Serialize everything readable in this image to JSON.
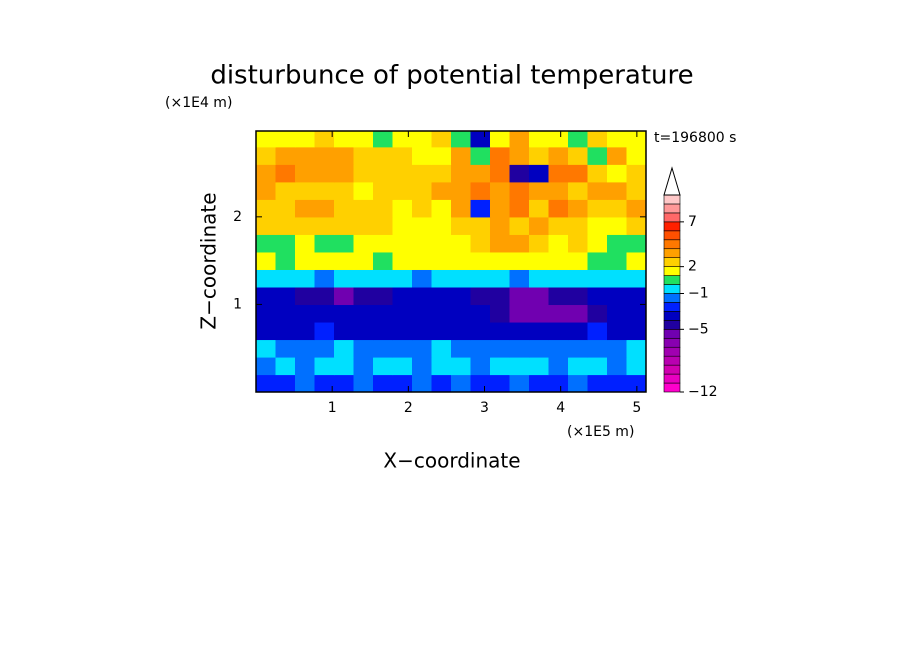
{
  "chart_data": {
    "type": "contour",
    "title": "disturbunce of potential temperature",
    "x_label": "X−coordinate",
    "x_unit": "(×1E5 m)",
    "y_label": "Z−coordinate",
    "y_unit": "(×1E4 m)",
    "annotation": "t=196800 s",
    "xlim": [
      0,
      5.12
    ],
    "ylim": [
      0,
      2.98
    ],
    "xticks": [
      1,
      2,
      3,
      4,
      5
    ],
    "yticks": [
      1,
      2
    ],
    "x": [
      0.128,
      0.384,
      0.64,
      0.896,
      1.152,
      1.408,
      1.664,
      1.92,
      2.176,
      2.432,
      2.688,
      2.944,
      3.2,
      3.456,
      3.712,
      3.968,
      4.224,
      4.48,
      4.736,
      4.992
    ],
    "y": [
      0.1,
      0.3,
      0.5,
      0.7,
      0.9,
      1.1,
      1.3,
      1.5,
      1.7,
      1.9,
      2.1,
      2.3,
      2.5,
      2.7,
      2.9
    ],
    "z": [
      [
        -3,
        -3,
        -2,
        -3,
        -3,
        -2,
        -3,
        -3,
        -2,
        -3,
        -2,
        -3,
        -3,
        -2,
        -3,
        -3,
        -2,
        -3,
        -3,
        -3
      ],
      [
        -2,
        -1,
        -2,
        -1,
        -1,
        -2,
        -1,
        -1,
        -2,
        -1,
        -1,
        -2,
        -1,
        -1,
        -1,
        -2,
        -1,
        -1,
        -2,
        -1
      ],
      [
        -1,
        -2,
        -2,
        -2,
        -1,
        -2,
        -2,
        -2,
        -2,
        -1,
        -2,
        -2,
        -2,
        -2,
        -2,
        -2,
        -2,
        -2,
        -2,
        -1
      ],
      [
        -4,
        -4,
        -4,
        -3,
        -4,
        -4,
        -4,
        -4,
        -4,
        -4,
        -4,
        -4,
        -4,
        -4,
        -4,
        -4,
        -4,
        -3,
        -4,
        -4
      ],
      [
        -4,
        -4,
        -4,
        -4,
        -4,
        -4,
        -4,
        -4,
        -4,
        -4,
        -4,
        -4,
        -5,
        -6,
        -6,
        -6,
        -6,
        -5,
        -4,
        -4
      ],
      [
        -4,
        -4,
        -5,
        -5,
        -6,
        -5,
        -5,
        -4,
        -4,
        -4,
        -4,
        -5,
        -5,
        -6,
        -6,
        -5,
        -5,
        -4,
        -4,
        -4
      ],
      [
        -1,
        -1,
        -1,
        -2,
        -1,
        -1,
        -1,
        -1,
        -2,
        -1,
        -1,
        -1,
        -1,
        -2,
        -1,
        -1,
        -1,
        -1,
        -1,
        -1
      ],
      [
        1,
        0,
        1,
        1,
        1,
        1,
        0,
        1,
        1,
        1,
        1,
        1,
        1,
        1,
        1,
        1,
        1,
        0,
        0,
        1
      ],
      [
        0,
        0,
        1,
        0,
        0,
        1,
        1,
        1,
        1,
        1,
        1,
        2,
        3,
        3,
        2,
        1,
        2,
        1,
        0,
        0
      ],
      [
        2,
        2,
        2,
        2,
        2,
        2,
        2,
        1,
        1,
        1,
        2,
        2,
        3,
        2,
        3,
        2,
        2,
        1,
        1,
        2
      ],
      [
        2,
        2,
        3,
        3,
        2,
        2,
        2,
        1,
        2,
        1,
        3,
        -3,
        3,
        4,
        2,
        4,
        3,
        2,
        2,
        3
      ],
      [
        3,
        2,
        2,
        2,
        2,
        1,
        2,
        2,
        2,
        3,
        3,
        4,
        3,
        4,
        3,
        3,
        2,
        3,
        3,
        2
      ],
      [
        3,
        4,
        3,
        3,
        3,
        2,
        2,
        2,
        2,
        2,
        3,
        3,
        4,
        -5,
        -4,
        4,
        4,
        2,
        1,
        2
      ],
      [
        2,
        3,
        3,
        3,
        3,
        2,
        2,
        2,
        1,
        1,
        3,
        0,
        4,
        3,
        2,
        3,
        2,
        0,
        3,
        1
      ],
      [
        1,
        1,
        1,
        2,
        1,
        1,
        0,
        1,
        1,
        2,
        0,
        -4,
        1,
        3,
        1,
        1,
        0,
        2,
        1,
        1
      ]
    ],
    "levels": [
      -12,
      -11,
      -10,
      -9,
      -8,
      -7,
      -6,
      -5,
      -4,
      -3,
      -2,
      -1,
      0,
      1,
      2,
      3,
      4,
      5,
      6,
      7,
      8,
      9,
      10
    ],
    "colors": [
      "#ff00cc",
      "#e800c0",
      "#d000b0",
      "#b800b0",
      "#a000b0",
      "#8800b0",
      "#7000b0",
      "#2000a0",
      "#0000c0",
      "#0020ff",
      "#0070ff",
      "#00e0ff",
      "#20e060",
      "#ffff00",
      "#ffd000",
      "#ffa000",
      "#ff7800",
      "#ff5000",
      "#ff2000",
      "#ff6868",
      "#ff9898",
      "#ffc8c8"
    ],
    "colorbar_ticks": [
      {
        "value": -12,
        "label": "−12"
      },
      {
        "value": -5,
        "label": "−5"
      },
      {
        "value": -1,
        "label": "−1"
      },
      2,
      7
    ]
  }
}
